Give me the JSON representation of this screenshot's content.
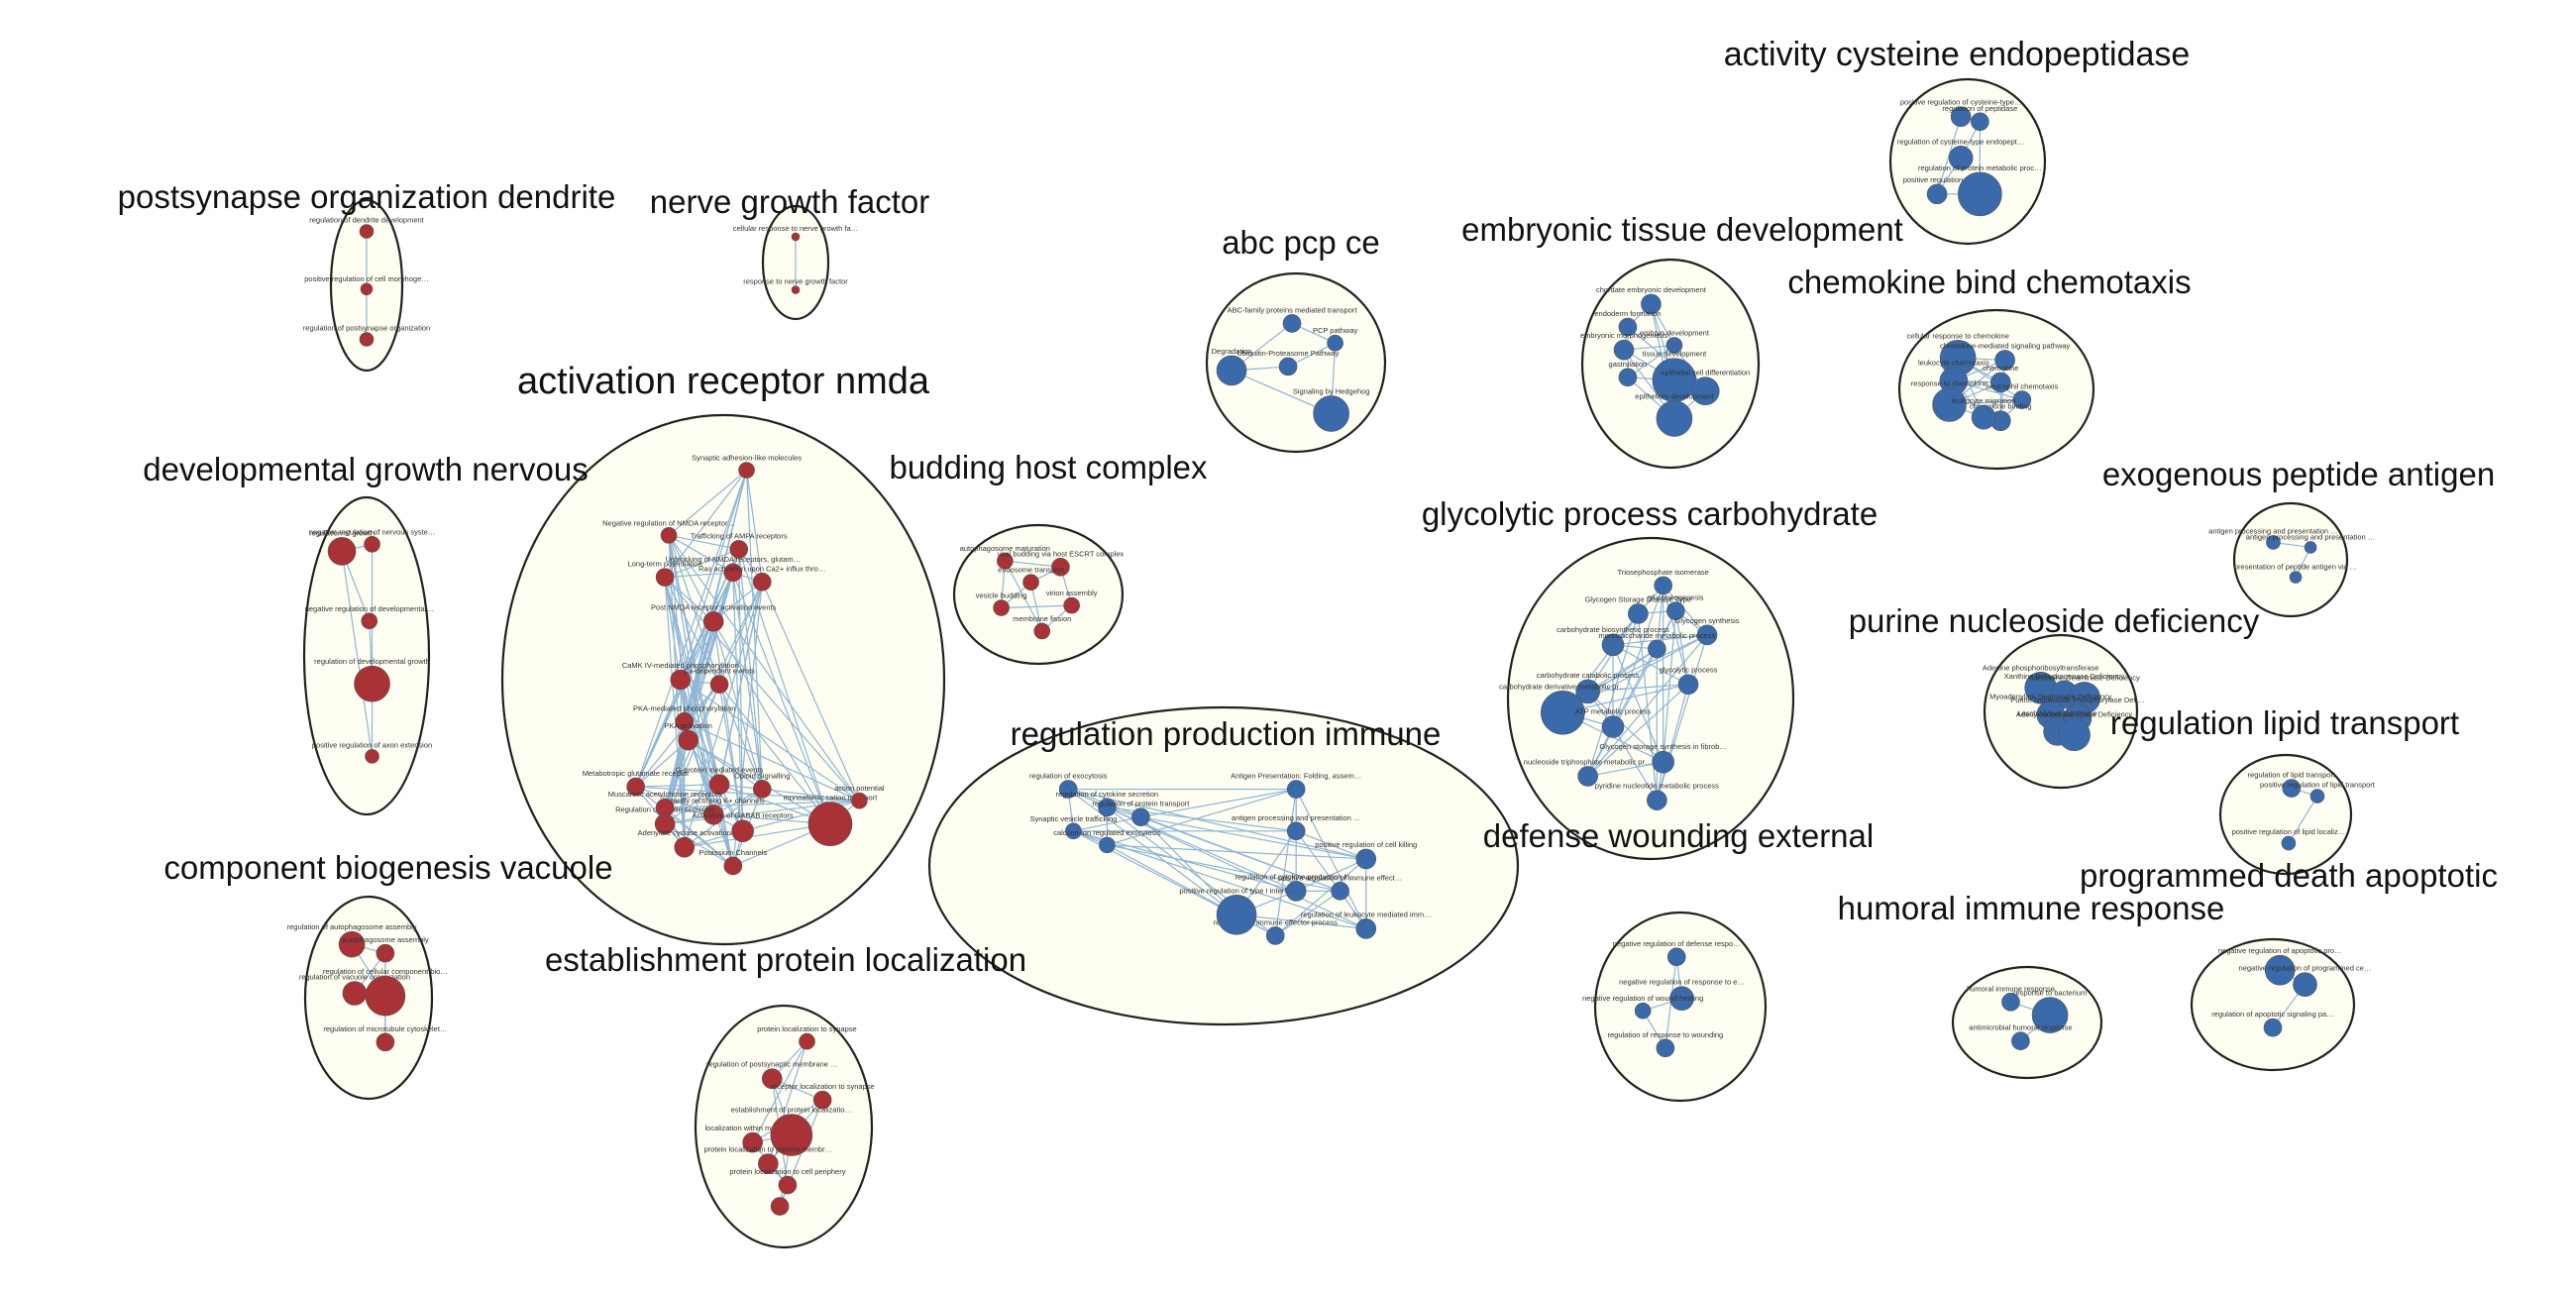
{
  "colors": {
    "red": "#a83236",
    "blue": "#3a6aaa",
    "edge": "#8fb5d6",
    "fill": "#fefef2"
  },
  "clusters": [
    {
      "title": "activity cysteine endopeptidase",
      "color": "blue",
      "nodes": [
        "positive regulation of cysteine-type endopeptidase activity",
        "regulation of peptidase",
        "regulation of cysteine-type endopeptidase activity",
        "positive regulation of",
        "regulation of protein metabolic process"
      ]
    },
    {
      "title": "postsynapse organization dendrite",
      "color": "red",
      "nodes": [
        "regulation of dendrite development",
        "positive regulation of cell morphogenesis",
        "regulation of postsynapse organization"
      ]
    },
    {
      "title": "nerve growth factor",
      "color": "red",
      "nodes": [
        "cellular response to nerve growth factor stimulus",
        "response to nerve growth factor"
      ]
    },
    {
      "title": "abc pcp ce",
      "color": "blue",
      "nodes": [
        "ABC-family proteins mediated transport",
        "PCP pathway",
        "Ubiquitin-Proteasome Pathway",
        "Degradation",
        "Signaling by Hedgehog"
      ]
    },
    {
      "title": "embryonic tissue development",
      "color": "blue",
      "nodes": [
        "chordate embryonic development",
        "endoderm formation",
        "embryonic morphogenesis",
        "embryo development",
        "gastrulation",
        "tissue development",
        "epithelial cell differentiation",
        "epithelium development"
      ]
    },
    {
      "title": "chemokine bind chemotaxis",
      "color": "blue",
      "nodes": [
        "cellular response to chemokine",
        "chemokine-mediated signaling pathway",
        "leukocyte chemotaxis",
        "chemokine",
        "response to chemokine",
        "neutrophil chemotaxis",
        "chemokine binding",
        "leukocyte migration"
      ]
    },
    {
      "title": "activation receptor nmda",
      "color": "red",
      "nodes": [
        "Synaptic adhesion-like molecules",
        "Negative regulation of NMDA receptor-mediated neuronal transmission",
        "Trafficking of AMPA receptors",
        "Long-term potentiation",
        "Unblocking of NMDA receptors, glutamate binding and activation",
        "Ras activation upon Ca2+ influx through NMDA receptor",
        "Post NMDA receptor activation events",
        "CaMK IV-mediated phosphorylation",
        "Ca-dependent events",
        "PKA-mediated phosphorylation",
        "PKA activation",
        "Metabotropic glutamate receptor",
        "G-protein mediated events",
        "Opioid Signalling",
        "inwardly rectifying K+ channels",
        "Activation of GABAB receptors",
        "Potassium Channels",
        "monoatomic cation transport",
        "action potential",
        "Regulation of insulin secretion",
        "Adenylate cyclase activation",
        "Muscarinic acetylcholine receptors"
      ]
    },
    {
      "title": "budding host complex",
      "color": "red",
      "nodes": [
        "autophagosome maturation",
        "viral budding via host ESCRT complex",
        "endosome transport",
        "vesicle budding",
        "virion assembly",
        "membrane fission"
      ]
    },
    {
      "title": "glycolytic process carbohydrate",
      "color": "blue",
      "nodes": [
        "Triosephosphate isomerase",
        "Glycogen Storage Disease Type",
        "gluconeogenesis",
        "Glycogen synthesis",
        "carbohydrate biosynthetic process",
        "monosaccharide metabolic process",
        "carbohydrate catabolic process",
        "glycolytic process",
        "carbohydrate derivative metabolic process",
        "ATP metabolic process",
        "nucleoside triphosphate metabolic process",
        "Glycogen storage synthesis in fibroblasts",
        "pyridine nucleotide metabolic process"
      ]
    },
    {
      "title": "exogenous peptide antigen",
      "color": "blue",
      "nodes": [
        "antigen processing and presentation of exogenous peptide antigen",
        "antigen processing and presentation via MHC class II",
        "presentation of peptide antigen via MHC class II"
      ]
    },
    {
      "title": "developmental growth nervous",
      "color": "red",
      "nodes": [
        "negative regulation of nervous system development",
        "regulation of growth",
        "negative regulation of developmental growth",
        "regulation of developmental growth",
        "positive regulation of axon extension"
      ]
    },
    {
      "title": "purine nucleoside deficiency",
      "color": "blue",
      "nodes": [
        "Adenine phosphoribosyltransferase",
        "Xanthine Dehydrogenase Deficiency",
        "Adenosine Deaminase Deficiency",
        "Myoadenylate Deaminase Deficiency",
        "Purine Nucleoside Phosphorylase Deficiency",
        "Lesch-Nyhan Syndrome",
        "Adenylosuccinate Lyase Deficiency"
      ]
    },
    {
      "title": "regulation lipid transport",
      "color": "blue",
      "nodes": [
        "regulation of lipid transport",
        "positive regulation of lipid transport",
        "positive regulation of lipid localization"
      ]
    },
    {
      "title": "regulation production immune",
      "color": "blue",
      "nodes": [
        "regulation of exocytosis",
        "regulation of cytokine secretion",
        "regulation of protein transport",
        "Synaptic vesicle trafficking",
        "calcium-ion regulated exocytosis",
        "Antigen Presentation: Folding, assembly and peptide loading of class I MHC",
        "antigen processing and presentation of peptide antigen via MHC class I",
        "positive regulation of cell killing",
        "regulation of cytokine production involved in immune response",
        "positive regulation of immune effector process",
        "regulation of immune effector process",
        "positive regulation of type I interferon production",
        "regulation of leukocyte mediated immunity"
      ]
    },
    {
      "title": "component biogenesis vacuole",
      "color": "red",
      "nodes": [
        "regulation of autophagosome assembly",
        "autophagosome assembly",
        "regulation of vacuole organization",
        "regulation of cellular component biogenesis",
        "regulation of microtubule cytoskeleton organization"
      ]
    },
    {
      "title": "establishment protein localization",
      "color": "red",
      "nodes": [
        "protein localization to synapse",
        "regulation of postsynaptic membrane neurotransmitter receptor levels",
        "receptor localization to synapse",
        "localization within membrane",
        "establishment of protein localization to plasma membrane",
        "protein localization to plasma membrane",
        "protein localization to cell periphery"
      ]
    },
    {
      "title": "defense wounding external",
      "color": "blue",
      "nodes": [
        "negative regulation of defense response",
        "negative regulation of response to external stimulus",
        "negative regulation of wound healing",
        "regulation of response to wounding"
      ]
    },
    {
      "title": "humoral immune response",
      "color": "blue",
      "nodes": [
        "humoral immune response",
        "response to bacterium",
        "antimicrobial humoral response"
      ]
    },
    {
      "title": "programmed death apoptotic",
      "color": "blue",
      "nodes": [
        "negative regulation of apoptotic process",
        "negative regulation of programmed cell death",
        "regulation of apoptotic signaling pathway"
      ]
    }
  ]
}
